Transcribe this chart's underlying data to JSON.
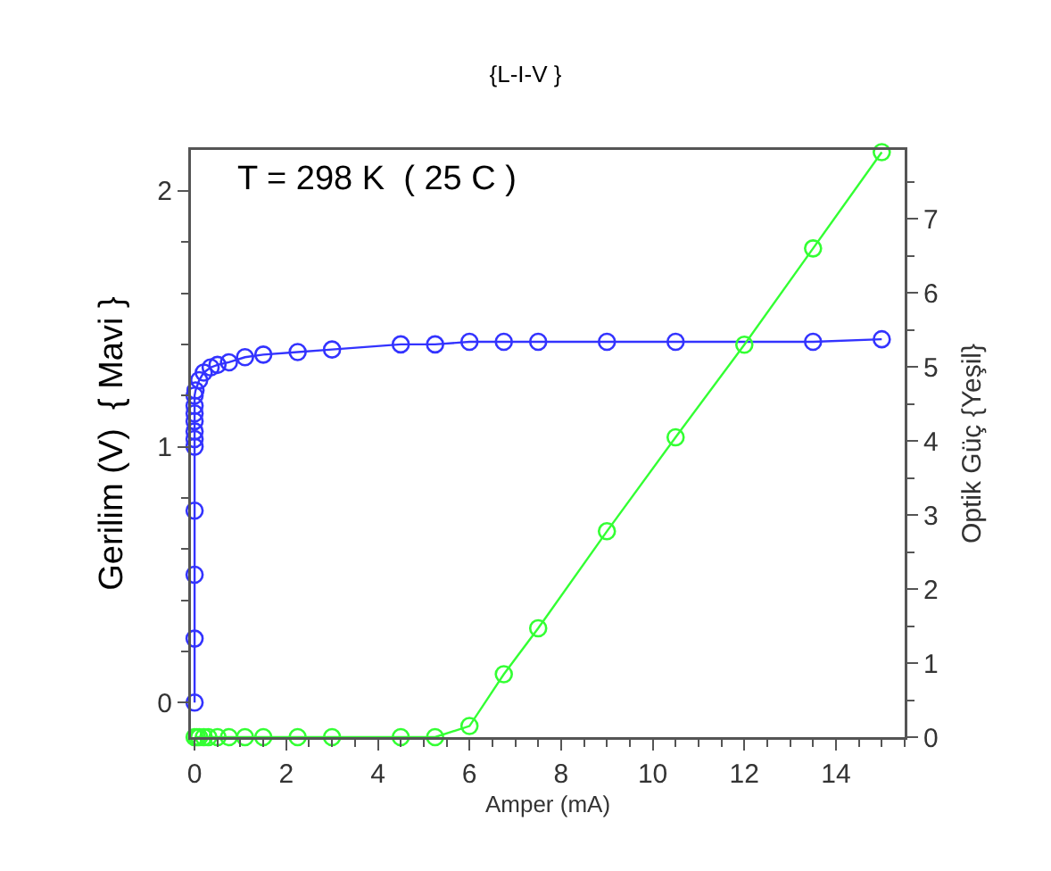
{
  "chart_data": {
    "type": "line",
    "title": "{L-I-V }",
    "xlabel": "Amper (mA)",
    "ylabel": "Gerilim (V)  { Mavi }",
    "y2label": "Optik Güç {Yeşil}",
    "annotations": [
      "T = 298 K  ( 25 C )"
    ],
    "series": [
      {
        "color": "#3333ff",
        "x": [
          0,
          0,
          0,
          0,
          0,
          0,
          0,
          0,
          0,
          0,
          0,
          0.02,
          0.1,
          0.2,
          0.35,
          0.5,
          0.75,
          1.1,
          1.5,
          2.25,
          3,
          4.5,
          5.25,
          6,
          6.75,
          7.5,
          9,
          10.5,
          13.5,
          15
        ],
        "values": [
          0,
          0.25,
          0.5,
          0.75,
          1.0,
          1.03,
          1.06,
          1.1,
          1.13,
          1.16,
          1.2,
          1.22,
          1.26,
          1.29,
          1.31,
          1.32,
          1.33,
          1.35,
          1.36,
          1.37,
          1.38,
          1.4,
          1.4,
          1.41,
          1.41,
          1.41,
          1.41,
          1.41,
          1.41,
          1.42
        ]
      },
      {
        "color": "#33ff33",
        "axis": "y2",
        "x": [
          0,
          0.05,
          0.1,
          0.2,
          0.3,
          0.5,
          0.75,
          1.1,
          1.5,
          2.25,
          3,
          4.5,
          5.25,
          6,
          6.75,
          7.5,
          9,
          10.5,
          12,
          13.5,
          15
        ],
        "values": [
          0,
          0,
          0,
          0,
          0,
          0,
          0,
          0,
          0,
          0,
          0,
          0,
          0,
          0.15,
          0.85,
          1.47,
          2.78,
          4.05,
          5.3,
          6.6,
          7.9
        ]
      }
    ],
    "xlim": [
      -0.08,
      15.5
    ],
    "xticks": [
      0,
      2,
      4,
      6,
      8,
      10,
      12,
      14
    ],
    "ylim": [
      -0.135,
      2.16
    ],
    "yticks": [
      0,
      1,
      2
    ],
    "y2lim": [
      0,
      7.93
    ],
    "y2ticks": [
      0,
      1,
      2,
      3,
      4,
      5,
      6,
      7
    ],
    "grid": false,
    "marker": "circle",
    "line_style": "solid"
  }
}
